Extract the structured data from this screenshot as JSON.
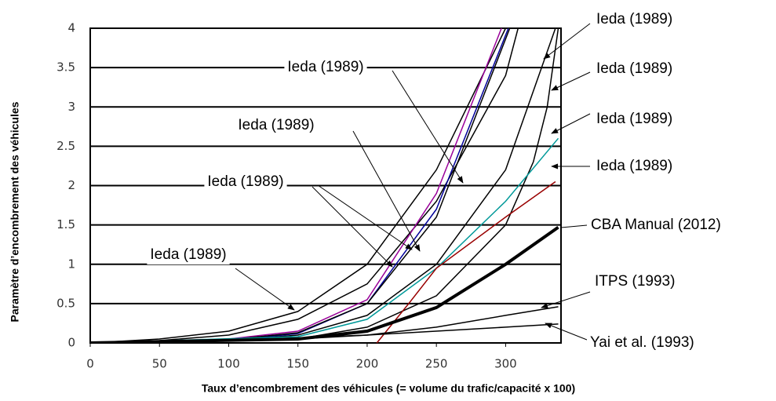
{
  "chart_data": {
    "type": "line",
    "xlabel": "Taux d’encombrement des véhicules (= volume du trafic/capacité x 100)",
    "ylabel": "Paramètre d’encombrement des véhicules",
    "xlim": [
      0,
      340
    ],
    "ylim": [
      0,
      4
    ],
    "xticks": [
      0,
      50,
      100,
      150,
      200,
      250,
      300
    ],
    "yticks": [
      0,
      0.5,
      1,
      1.5,
      2,
      2.5,
      3,
      3.5,
      4
    ],
    "grid": true,
    "annotations": [
      "Ieda  (1989)",
      "Ieda (1989)",
      "Ieda (1989)",
      "Ieda (1989)",
      "CBA Manual (2012)",
      "ITPS (1993)",
      "Yai et al. (1993)",
      "Ieda (1989)",
      "Ieda (1989)",
      "Ieda (1989)",
      "Ieda (1989)"
    ],
    "series": [
      {
        "color": "#000000",
        "width": 1.5,
        "x": [
          0,
          50,
          100,
          150,
          200,
          250,
          300
        ],
        "values": [
          0,
          0.05,
          0.15,
          0.4,
          1.0,
          2.2,
          4
        ]
      },
      {
        "color": "#000000",
        "width": 1.5,
        "x": [
          0,
          50,
          100,
          150,
          200,
          250,
          300,
          309
        ],
        "values": [
          0,
          0.03,
          0.1,
          0.3,
          0.75,
          1.8,
          3.4,
          4
        ]
      },
      {
        "color": "#990099",
        "width": 1.5,
        "x": [
          0,
          100,
          150,
          200,
          250,
          297
        ],
        "values": [
          0,
          0.05,
          0.15,
          0.55,
          1.9,
          4
        ]
      },
      {
        "color": "#000099",
        "width": 1.5,
        "x": [
          0,
          100,
          150,
          200,
          250,
          302
        ],
        "values": [
          0,
          0.03,
          0.12,
          0.5,
          1.7,
          4
        ]
      },
      {
        "color": "#000000",
        "width": 1.5,
        "x": [
          0,
          100,
          150,
          200,
          250,
          303
        ],
        "values": [
          0,
          0.04,
          0.13,
          0.5,
          1.6,
          4
        ]
      },
      {
        "color": "#000000",
        "width": 1.5,
        "x": [
          0,
          100,
          150,
          200,
          250,
          300,
          336
        ],
        "values": [
          0,
          0.03,
          0.1,
          0.35,
          1.0,
          2.2,
          4
        ]
      },
      {
        "color": "#000000",
        "width": 1.5,
        "x": [
          0,
          150,
          200,
          250,
          300,
          320,
          330,
          338
        ],
        "values": [
          0,
          0.05,
          0.2,
          0.6,
          1.5,
          2.3,
          3.0,
          4
        ]
      },
      {
        "color": "#009999",
        "width": 1.5,
        "x": [
          0,
          150,
          200,
          250,
          300,
          338
        ],
        "values": [
          0,
          0.08,
          0.3,
          0.95,
          1.8,
          2.6
        ]
      },
      {
        "color": "#990000",
        "width": 1.5,
        "x": [
          207,
          230,
          250,
          300,
          336
        ],
        "values": [
          0,
          0.5,
          0.95,
          1.6,
          2.05
        ]
      },
      {
        "color": "#000000",
        "width": 4,
        "x": [
          0,
          150,
          200,
          250,
          300,
          338
        ],
        "values": [
          0,
          0.05,
          0.15,
          0.45,
          1.0,
          1.47
        ]
      },
      {
        "color": "#000000",
        "width": 1.5,
        "x": [
          0,
          150,
          200,
          250,
          300,
          338
        ],
        "values": [
          0,
          0.05,
          0.1,
          0.2,
          0.35,
          0.46
        ]
      },
      {
        "color": "#000000",
        "width": 1.5,
        "x": [
          0,
          100,
          200,
          300,
          338
        ],
        "values": [
          0,
          0.03,
          0.1,
          0.2,
          0.24
        ]
      }
    ]
  }
}
